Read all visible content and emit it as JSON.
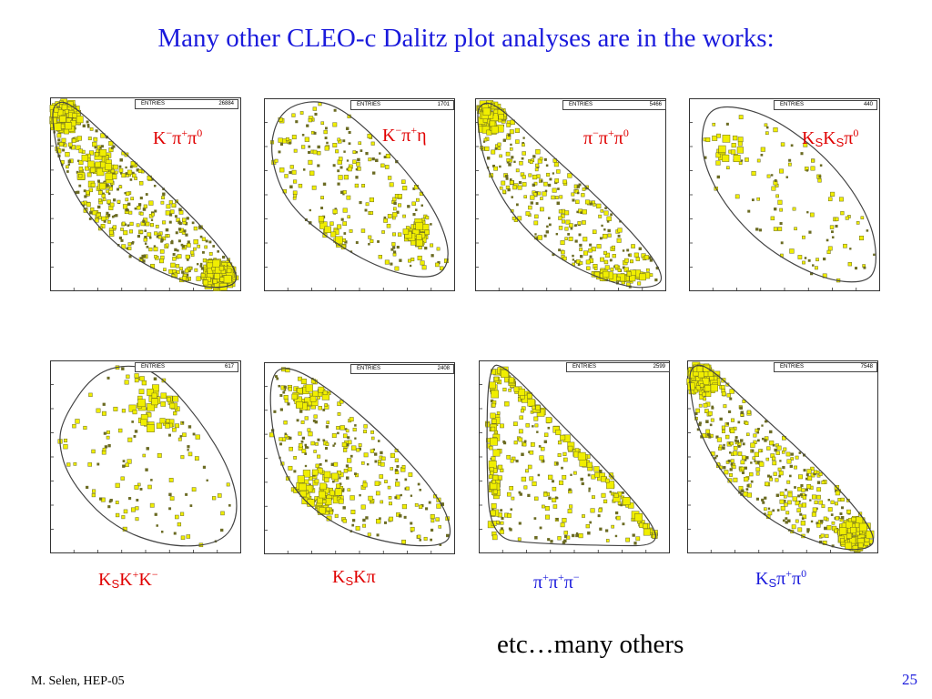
{
  "title": "Many other CLEO-c Dalitz plot analyses are in the works:",
  "etc_text": "etc…many others",
  "footer": {
    "author": "M. Selen, HEP-05",
    "page": "25"
  },
  "colors": {
    "title": "#1a1adc",
    "red_label": "#e00000",
    "blue_label": "#1a1adc",
    "box_fill": "#f0ee00",
    "box_stroke": "#6b6b22"
  },
  "entries_label": "ENTRIES",
  "chart_data": [
    {
      "type": "scatter",
      "id": "kpipi0",
      "entries": "26884",
      "label_parts": [
        "K",
        "−",
        "π",
        "+",
        "π",
        "0"
      ],
      "label_color": "red",
      "hotspots": [
        "top-left corner",
        "bottom-right corner"
      ]
    },
    {
      "type": "scatter",
      "id": "kpieta",
      "entries": "1701",
      "label_parts": [
        "K",
        "−",
        "π",
        "+",
        "η",
        ""
      ],
      "label_color": "red",
      "hotspots": [
        "bottom band"
      ]
    },
    {
      "type": "scatter",
      "id": "pipipi0",
      "entries": "5466",
      "label_parts": [
        "π",
        "−",
        "π",
        "+",
        "π",
        "0"
      ],
      "label_color": "red",
      "hotspots": [
        "top-left corner",
        "bottom band"
      ]
    },
    {
      "type": "scatter",
      "id": "ksks_pi0",
      "entries": "440",
      "label_parts": [
        "K",
        "S",
        "K",
        "S",
        "π",
        "0"
      ],
      "label_color": "red",
      "hotspots": [
        "sparse"
      ]
    },
    {
      "type": "scatter",
      "id": "kskk",
      "entries": "617",
      "label_parts": [
        "K",
        "S",
        "K",
        "+",
        "K",
        "−"
      ],
      "label_color": "red",
      "hotspots": [
        "upper-right edge"
      ]
    },
    {
      "type": "scatter",
      "id": "kskpi",
      "entries": "2408",
      "label_parts": [
        "K",
        "S",
        "K",
        "",
        "π",
        ""
      ],
      "label_color": "red",
      "hotspots": [
        "left region"
      ]
    },
    {
      "type": "scatter",
      "id": "pipipi",
      "entries": "2599",
      "label_parts": [
        "π",
        "+",
        "π",
        "+",
        "π",
        "−"
      ],
      "label_color": "blue",
      "hotspots": [
        "diagonal edge",
        "left edge"
      ]
    },
    {
      "type": "scatter",
      "id": "kspipi0",
      "entries": "7548",
      "label_parts": [
        "K",
        "S",
        "π",
        "+",
        "π",
        "0"
      ],
      "label_color": "blue",
      "hotspots": [
        "top-left corner",
        "bottom-right corner"
      ]
    }
  ]
}
